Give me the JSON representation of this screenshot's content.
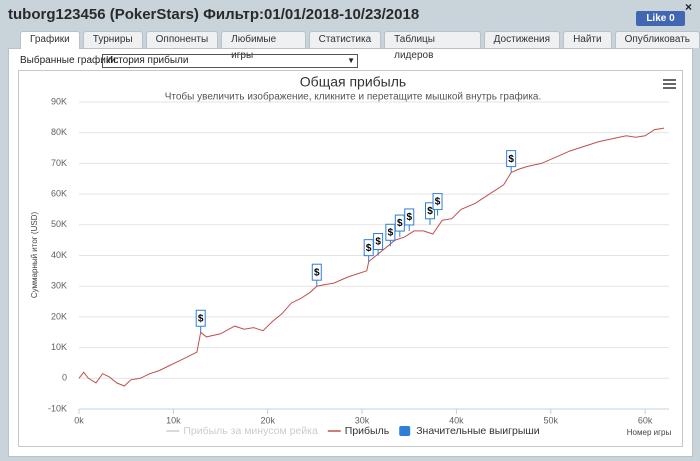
{
  "header": {
    "title": "tuborg123456 (PokerStars) Фильтр:01/01/2018-10/23/2018",
    "close": "×",
    "like": "Like 0"
  },
  "tabs": [
    "Графики",
    "Турниры",
    "Оппоненты",
    "Любимые игры",
    "Статистика",
    "Таблицы лидеров",
    "Достижения",
    "Найти",
    "Опубликовать"
  ],
  "selector": {
    "label": "Выбранные графики:",
    "value": "История прибыли"
  },
  "chart_data": {
    "type": "line",
    "title": "Общая прибыль",
    "subtitle": "Чтобы увеличить изображение, кликните и перетащите мышкой внутрь графика.",
    "ylabel": "Суммарный итог (USD)",
    "xlabel": "Номер игры",
    "grid": true,
    "xlim": [
      0,
      62000
    ],
    "ylim": [
      -10000,
      90000
    ],
    "xticks": [
      {
        "value": 0,
        "label": "0k"
      },
      {
        "value": 10000,
        "label": "10k"
      },
      {
        "value": 20000,
        "label": "20k"
      },
      {
        "value": 30000,
        "label": "30k"
      },
      {
        "value": 40000,
        "label": "40k"
      },
      {
        "value": 50000,
        "label": "50k"
      },
      {
        "value": 60000,
        "label": "60k"
      }
    ],
    "yticks": [
      {
        "value": -10000,
        "label": "-10K"
      },
      0,
      {
        "value": 10000,
        "label": "10K"
      },
      {
        "value": 20000,
        "label": "20K"
      },
      {
        "value": 30000,
        "label": "30K"
      },
      {
        "value": 40000,
        "label": "40K"
      },
      {
        "value": 50000,
        "label": "50K"
      },
      {
        "value": 60000,
        "label": "60K"
      },
      {
        "value": 70000,
        "label": "70K"
      },
      {
        "value": 80000,
        "label": "80K"
      },
      {
        "value": 90000,
        "label": "90K"
      }
    ],
    "series": [
      {
        "name": "Прибыль за минусом рейка",
        "color": "#cccccc",
        "visible": false
      },
      {
        "name": "Прибыль",
        "color": "#c0504d",
        "x": [
          0,
          500,
          1000,
          1800,
          2500,
          3200,
          4000,
          4800,
          5500,
          6500,
          7500,
          8500,
          9500,
          10500,
          11500,
          12500,
          12900,
          13500,
          15000,
          16500,
          17500,
          18500,
          19500,
          20500,
          21500,
          22500,
          23500,
          24500,
          25200,
          26000,
          27000,
          28500,
          29500,
          30500,
          30700,
          31500,
          32500,
          33500,
          34500,
          35500,
          36500,
          37500,
          38500,
          39500,
          40500,
          42000,
          43500,
          45000,
          45800,
          46500,
          47500,
          49000,
          50500,
          52000,
          53500,
          55000,
          56500,
          58000,
          59000,
          60000,
          61000,
          62000
        ],
        "values": [
          0,
          2000,
          0,
          -1500,
          1500,
          500,
          -1500,
          -2500,
          -500,
          0,
          1500,
          2500,
          4000,
          5500,
          7000,
          8500,
          15000,
          13500,
          14500,
          17000,
          16000,
          16500,
          15500,
          18500,
          21000,
          24500,
          26000,
          28000,
          30000,
          30500,
          31000,
          33000,
          34000,
          35000,
          38000,
          40000,
          42500,
          45000,
          46000,
          48000,
          48000,
          47000,
          51500,
          52000,
          55000,
          57000,
          60000,
          63000,
          67000,
          68000,
          69000,
          70000,
          72000,
          74000,
          75500,
          77000,
          78000,
          79000,
          78500,
          79000,
          81000,
          81500
        ]
      },
      {
        "name": "Значительные выигрыши",
        "color": "#2f7ed8",
        "marker_label": "$",
        "x": [
          12900,
          25200,
          30700,
          31700,
          33000,
          34000,
          35000,
          37200,
          38000,
          45800
        ],
        "values": [
          15000,
          30000,
          38000,
          40000,
          43000,
          46000,
          48000,
          50000,
          53000,
          67000
        ]
      }
    ]
  }
}
